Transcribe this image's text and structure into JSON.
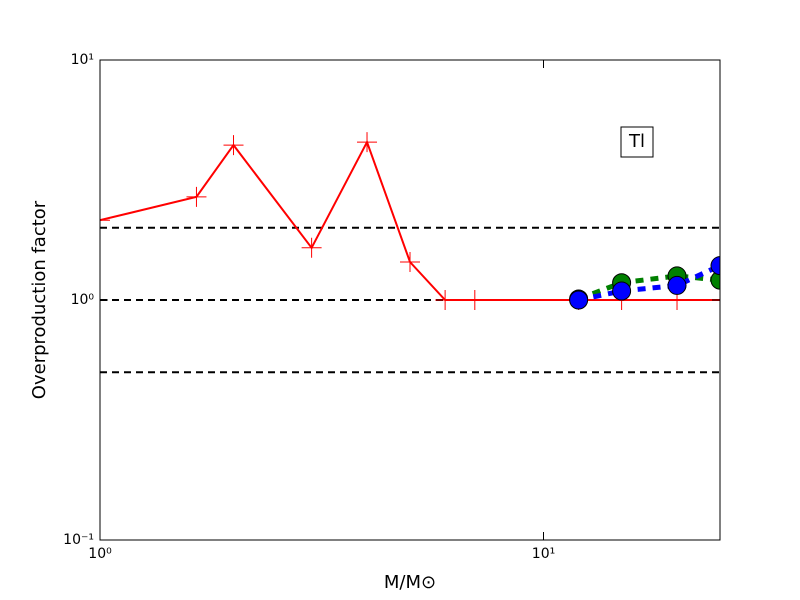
{
  "chart_data": {
    "type": "line",
    "xlabel": "M/M⊙",
    "ylabel": "Overproduction factor",
    "annotation": "Tl",
    "xscale": "log",
    "yscale": "log",
    "xlim": [
      1,
      25
    ],
    "ylim": [
      0.1,
      10
    ],
    "xticks": [
      {
        "value": 1,
        "label": "10⁰"
      },
      {
        "value": 10,
        "label": "10¹"
      }
    ],
    "yticks": [
      {
        "value": 0.1,
        "label": "10⁻¹"
      },
      {
        "value": 1,
        "label": "10⁰"
      },
      {
        "value": 10,
        "label": "10¹"
      }
    ],
    "hlines": [
      2,
      1,
      0.5
    ],
    "series": [
      {
        "color": "#ff0000",
        "linestyle": "solid",
        "marker": "+",
        "x": [
          1,
          1.65,
          2,
          3,
          4,
          5,
          6,
          7,
          12,
          15,
          20,
          25
        ],
        "values": [
          2.15,
          2.69,
          4.42,
          1.65,
          4.55,
          1.44,
          1.0,
          1.0,
          1.0,
          1.0,
          1.0,
          1.0
        ]
      },
      {
        "color": "#008000",
        "linestyle": "dashed",
        "marker": "o",
        "x": [
          12,
          15,
          20,
          25
        ],
        "values": [
          1.01,
          1.18,
          1.26,
          1.21
        ]
      },
      {
        "color": "#0000ff",
        "linestyle": "dashed",
        "marker": "o",
        "x": [
          12,
          15,
          20,
          25
        ],
        "values": [
          1.0,
          1.09,
          1.15,
          1.39
        ]
      }
    ]
  }
}
